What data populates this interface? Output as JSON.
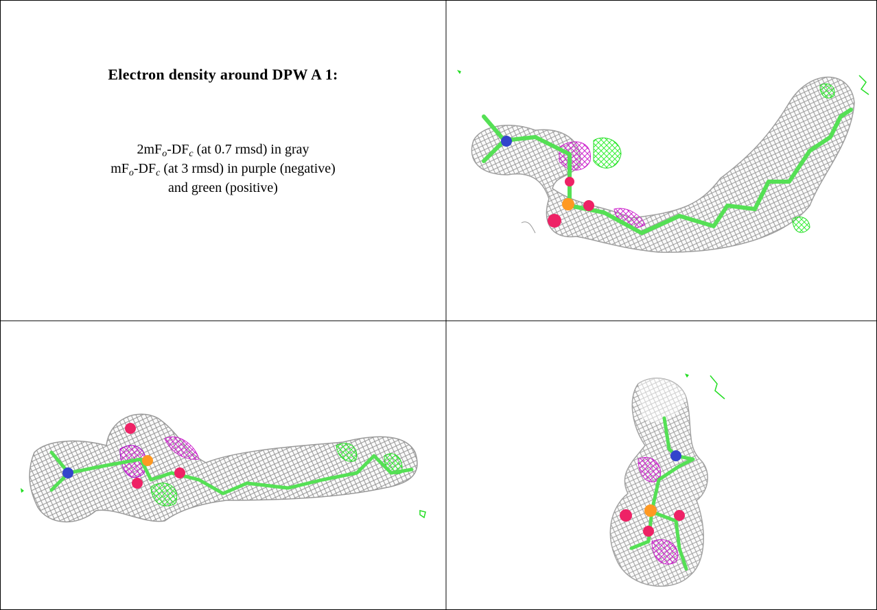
{
  "title": "Electron density around DPW A 1:",
  "legend_lines": [
    [
      "2mF",
      "o",
      "-DF",
      "c",
      " (at 0.7 rmsd) in gray"
    ],
    [
      "mF",
      "o",
      "-DF",
      "c",
      " (at 3 rmsd) in purple (negative)"
    ],
    [
      "and green (positive)"
    ]
  ]
}
